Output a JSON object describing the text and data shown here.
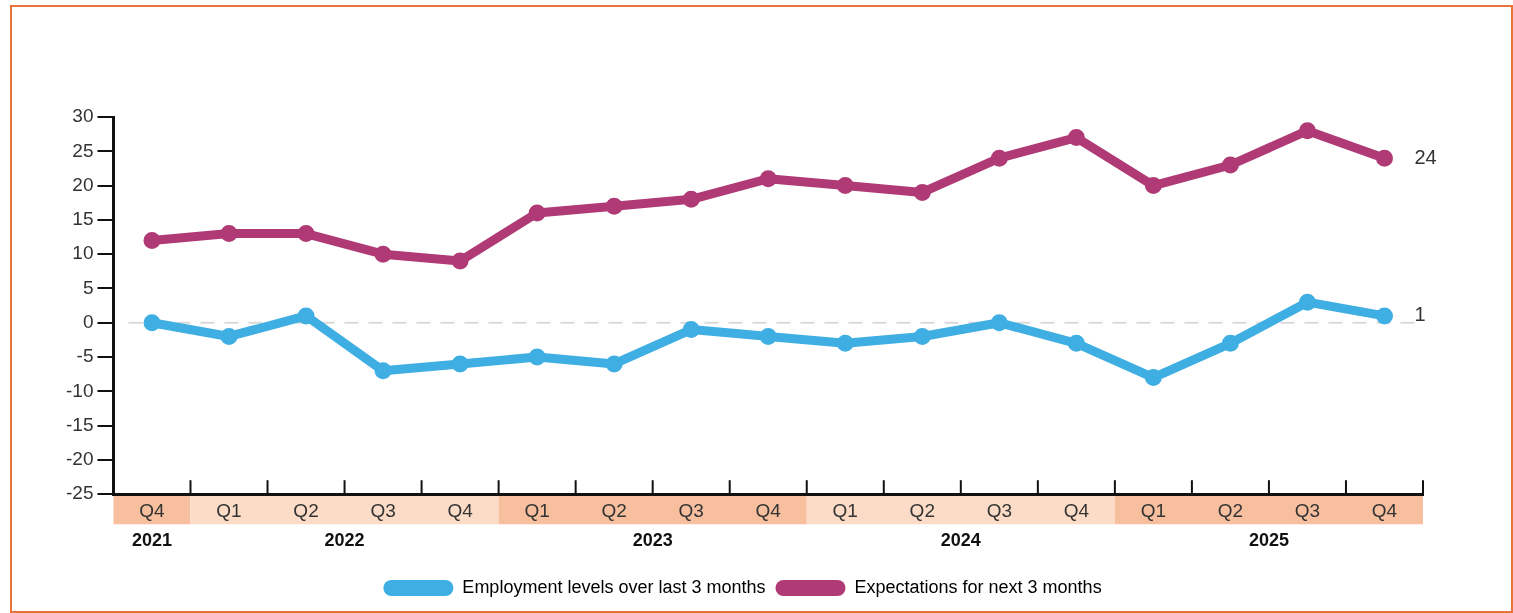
{
  "chart_data": {
    "type": "line",
    "categories": [
      "Q4",
      "Q1",
      "Q2",
      "Q3",
      "Q4",
      "Q1",
      "Q2",
      "Q3",
      "Q4",
      "Q1",
      "Q2",
      "Q3",
      "Q4",
      "Q1",
      "Q2",
      "Q3",
      "Q4"
    ],
    "series": [
      {
        "name": "Employment levels over last 3 months",
        "color": "#3eaee3",
        "values": [
          0,
          -2,
          1,
          -7,
          -6,
          -5,
          -6,
          -1,
          -2,
          -3,
          -2,
          0,
          -3,
          -8,
          -3,
          3,
          1
        ],
        "value_labels": [
          null,
          null,
          null,
          null,
          null,
          null,
          null,
          null,
          null,
          null,
          null,
          null,
          null,
          null,
          null,
          null,
          "1"
        ]
      },
      {
        "name": "Expectations for next 3 months",
        "color": "#b03a75",
        "values": [
          12,
          13,
          13,
          10,
          9,
          16,
          17,
          18,
          21,
          20,
          19,
          24,
          27,
          20,
          23,
          28,
          24
        ],
        "value_labels": [
          null,
          null,
          null,
          null,
          null,
          null,
          null,
          null,
          null,
          null,
          null,
          null,
          null,
          null,
          null,
          null,
          "24"
        ]
      }
    ],
    "annotations": [
      "2021",
      "2022",
      "2023",
      "2024",
      "2025"
    ],
    "ylim": [
      -25,
      30
    ],
    "yticks": [
      -25,
      -20,
      -15,
      -10,
      -5,
      0,
      5,
      10,
      15,
      20,
      25,
      30
    ],
    "ref_lines": [
      {
        "axis": "y",
        "value": 0,
        "color": "#d9d9d9",
        "line_style": "dashed"
      }
    ],
    "marker": "circle",
    "grid": false,
    "legend": "bottom"
  }
}
